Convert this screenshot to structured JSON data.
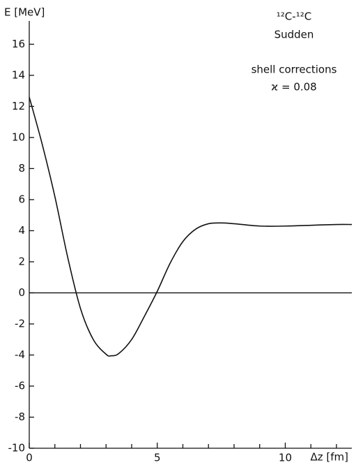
{
  "chart_data": {
    "type": "line",
    "y_label": "E [MeV]",
    "x_label": "Δz [fm]",
    "annotations": [
      "¹²C-¹²C",
      "Sudden",
      "shell corrections",
      "ϰ = 0.08"
    ],
    "x": [
      0,
      0.5,
      1,
      1.5,
      2,
      2.5,
      3,
      3.2,
      3.5,
      4,
      4.5,
      5,
      5.5,
      6,
      6.5,
      7,
      7.5,
      8,
      9,
      10,
      11,
      12,
      12.6
    ],
    "series": [
      {
        "color": "#111111",
        "values": [
          12.6,
          9.6,
          6.2,
          2.3,
          -1.0,
          -3.0,
          -3.95,
          -4.05,
          -3.9,
          -3.0,
          -1.5,
          0.1,
          1.9,
          3.3,
          4.1,
          4.45,
          4.5,
          4.45,
          4.3,
          4.3,
          4.35,
          4.4,
          4.4
        ]
      }
    ],
    "xlim": [
      0,
      12.6
    ],
    "ylim": [
      -10,
      17.5
    ],
    "xticks": [
      0,
      5,
      10
    ],
    "xminorticks": [
      1,
      2,
      3,
      4,
      6,
      7,
      8,
      9,
      11,
      12
    ],
    "yticks": [
      -10,
      -8,
      -6,
      -4,
      -2,
      0,
      2,
      4,
      6,
      8,
      10,
      12,
      14,
      16
    ],
    "hline": 0
  }
}
